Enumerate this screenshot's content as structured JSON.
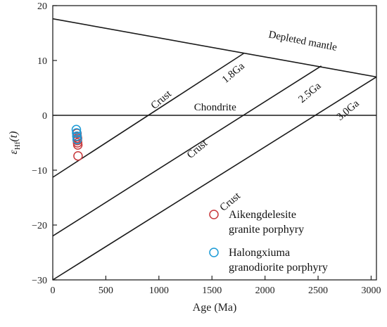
{
  "chart_data": {
    "type": "scatter",
    "xlabel": "Age (Ma)",
    "ylabel": "εHf(t)",
    "ylabel_parts": {
      "main": "ε",
      "sub": "Hf",
      "rest": "(t)"
    },
    "xlim": [
      0,
      3050
    ],
    "ylim": [
      -30,
      20
    ],
    "xticks": [
      0,
      500,
      1000,
      1500,
      2000,
      2500,
      3000
    ],
    "yticks": [
      -30,
      -20,
      -10,
      0,
      10,
      20
    ],
    "grid": false,
    "legend_position": "bottom-right",
    "reference_lines": [
      {
        "name": "Depleted mantle",
        "points": [
          [
            0,
            17.6
          ],
          [
            3050,
            7.0
          ]
        ]
      },
      {
        "name": "Chondrite",
        "points": [
          [
            0,
            0
          ],
          [
            3050,
            0
          ]
        ]
      },
      {
        "name": "1.8Ga crust",
        "points": [
          [
            0,
            -11.3
          ],
          [
            1800,
            11.3
          ]
        ]
      },
      {
        "name": "2.5Ga crust",
        "points": [
          [
            0,
            -22.0
          ],
          [
            2530,
            9.0
          ]
        ]
      },
      {
        "name": "3.0Ga crust",
        "points": [
          [
            0,
            -30.0
          ],
          [
            3050,
            7.0
          ]
        ]
      }
    ],
    "annotations": [
      {
        "text": "Depleted mantle",
        "x": 2350,
        "y": 13.0,
        "angle": 11
      },
      {
        "text": "1.8Ga",
        "x": 1720,
        "y": 7.3,
        "angle": -40
      },
      {
        "text": "2.5Ga",
        "x": 2440,
        "y": 3.7,
        "angle": -40
      },
      {
        "text": "3.0Ga",
        "x": 2800,
        "y": 0.5,
        "angle": -40
      },
      {
        "text": "Chondrite",
        "x": 1530,
        "y": 0.9,
        "angle": 0
      },
      {
        "text": "Crust",
        "x": 1040,
        "y": 2.4,
        "angle": -40
      },
      {
        "text": "Crust",
        "x": 1380,
        "y": -6.6,
        "angle": -40
      },
      {
        "text": "Crust",
        "x": 1690,
        "y": -16.2,
        "angle": -40
      }
    ],
    "series": [
      {
        "name": "Aikengdelesite granite porphyry",
        "legend_lines": [
          "Aikengdelesite",
          "granite porphyry"
        ],
        "color": "#c8383c",
        "points": [
          [
            228,
            -3.3
          ],
          [
            230,
            -3.9
          ],
          [
            232,
            -4.6
          ],
          [
            234,
            -5.0
          ],
          [
            236,
            -5.4
          ],
          [
            233,
            -4.2
          ],
          [
            238,
            -7.4
          ]
        ]
      },
      {
        "name": "Halongxiuma granodiorite porphyry",
        "legend_lines": [
          "Halongxiuma",
          "granodiorite porphyry"
        ],
        "color": "#1a9ad6",
        "points": [
          [
            222,
            -2.6
          ],
          [
            225,
            -3.2
          ],
          [
            227,
            -3.8
          ],
          [
            230,
            -4.4
          ]
        ]
      }
    ]
  }
}
